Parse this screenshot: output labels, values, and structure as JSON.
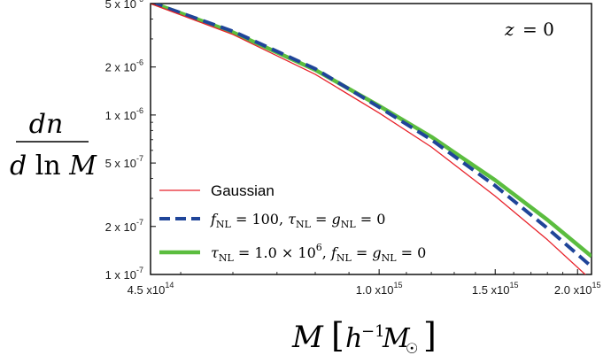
{
  "chart_data": {
    "type": "line",
    "xlabel": "M [h⁻¹M☉]",
    "ylabel": "dn / d ln M",
    "annotation": "z = 0",
    "xscale": "log",
    "yscale": "log",
    "xlim": [
      450000000000000.0,
      2100000000000000.0
    ],
    "ylim": [
      1e-07,
      5e-06
    ],
    "x_ticks": [
      {
        "value": 450000000000000.0,
        "mant": "4.5",
        "base": "x10",
        "exp": "14"
      },
      {
        "value": 1000000000000000.0,
        "mant": "1.0",
        "base": "x10",
        "exp": "15"
      },
      {
        "value": 1500000000000000.0,
        "mant": "1.5",
        "base": "x10",
        "exp": "15"
      },
      {
        "value": 2000000000000000.0,
        "mant": "2.0",
        "base": "x10",
        "exp": "15"
      }
    ],
    "y_ticks": [
      {
        "value": 5e-06,
        "mant": "5",
        "base": "x 10",
        "exp": "-6"
      },
      {
        "value": 2e-06,
        "mant": "2",
        "base": "x 10",
        "exp": "-6"
      },
      {
        "value": 1e-06,
        "mant": "1",
        "base": "x 10",
        "exp": "-6"
      },
      {
        "value": 5e-07,
        "mant": "5",
        "base": "x 10",
        "exp": "-7"
      },
      {
        "value": 2e-07,
        "mant": "2",
        "base": "x 10",
        "exp": "-7"
      },
      {
        "value": 1e-07,
        "mant": "1",
        "base": "x 10",
        "exp": "-7"
      }
    ],
    "legend_position": "bottom-left",
    "series": [
      {
        "name": "Gaussian",
        "color": "#e8222a",
        "style": "solid-thin",
        "x": [
          450000000000000.0,
          600000000000000.0,
          800000000000000.0,
          1000000000000000.0,
          1200000000000000.0,
          1500000000000000.0,
          1800000000000000.0,
          2100000000000000.0
        ],
        "y": [
          5e-06,
          3.2e-06,
          1.8e-06,
          1.03e-06,
          6.3e-07,
          3.1e-07,
          1.65e-07,
          9.2e-08
        ]
      },
      {
        "name": "f_NL = 100, τ_NL = g_NL = 0",
        "color": "#1f4599",
        "style": "dashed",
        "x": [
          450000000000000.0,
          600000000000000.0,
          800000000000000.0,
          1000000000000000.0,
          1200000000000000.0,
          1500000000000000.0,
          1800000000000000.0,
          2100000000000000.0
        ],
        "y": [
          5.1e-06,
          3.35e-06,
          1.95e-06,
          1.12e-06,
          7e-07,
          3.6e-07,
          1.95e-07,
          1.12e-07
        ]
      },
      {
        "name": "τ_NL = 1.0 × 10⁶, f_NL = g_NL = 0",
        "color": "#5bbd3f",
        "style": "solid-thick",
        "x": [
          450000000000000.0,
          600000000000000.0,
          800000000000000.0,
          1000000000000000.0,
          1200000000000000.0,
          1500000000000000.0,
          1800000000000000.0,
          2100000000000000.0
        ],
        "y": [
          5.1e-06,
          3.3e-06,
          1.92e-06,
          1.14e-06,
          7.3e-07,
          3.9e-07,
          2.2e-07,
          1.3e-07
        ]
      }
    ]
  }
}
